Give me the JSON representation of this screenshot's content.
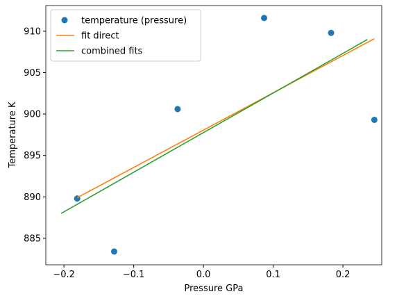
{
  "chart_data": {
    "type": "scatter",
    "xlabel": "Pressure GPa",
    "ylabel": "Temperature K",
    "xlim": [
      -0.226,
      0.2556
    ],
    "ylim": [
      881.8,
      913.1
    ],
    "xticks": [
      {
        "value": -0.2,
        "label": "−0.2"
      },
      {
        "value": -0.1,
        "label": "−0.1"
      },
      {
        "value": 0,
        "label": "0.0"
      },
      0.1,
      0.2
    ],
    "yticks": [
      885,
      890,
      895,
      900,
      905,
      910
    ],
    "legend": "upper left",
    "series": [
      {
        "name": "temperature (pressure)",
        "color": "#1f77b4",
        "mode": "markers",
        "x": [
          -0.181,
          -0.128,
          -0.037,
          0.087,
          0.183,
          0.245
        ],
        "values": [
          889.8,
          883.4,
          900.6,
          911.6,
          909.8,
          899.3
        ]
      },
      {
        "name": "fit direct",
        "color": "#ff7f0e",
        "mode": "line",
        "x": [
          -0.181,
          0.245
        ],
        "values": [
          889.9,
          909.1
        ]
      },
      {
        "name": "combined fits",
        "color": "#2ca02c",
        "mode": "line",
        "x": [
          -0.204,
          0.235
        ],
        "values": [
          888.0,
          909.0
        ]
      }
    ]
  }
}
